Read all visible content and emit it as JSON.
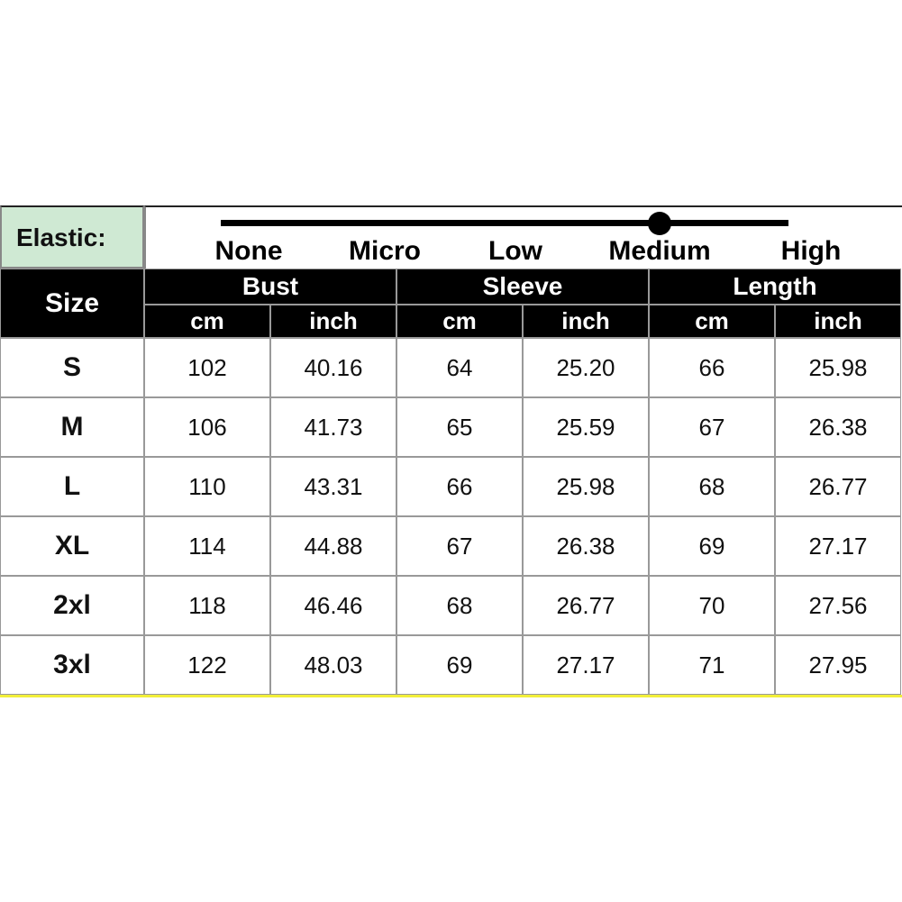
{
  "elastic": {
    "label": "Elastic:",
    "levels": [
      "None",
      "Micro",
      "Low",
      "Medium",
      "High"
    ],
    "selected": "Medium"
  },
  "header": {
    "size": "Size",
    "groups": [
      "Bust",
      "Sleeve",
      "Length"
    ],
    "units": [
      "cm",
      "inch",
      "cm",
      "inch",
      "cm",
      "inch"
    ]
  },
  "rows": [
    {
      "size": "S",
      "values": [
        "102",
        "40.16",
        "64",
        "25.20",
        "66",
        "25.98"
      ]
    },
    {
      "size": "M",
      "values": [
        "106",
        "41.73",
        "65",
        "25.59",
        "67",
        "26.38"
      ]
    },
    {
      "size": "L",
      "values": [
        "110",
        "43.31",
        "66",
        "25.98",
        "68",
        "26.77"
      ]
    },
    {
      "size": "XL",
      "values": [
        "114",
        "44.88",
        "67",
        "26.38",
        "69",
        "27.17"
      ]
    },
    {
      "size": "2xl",
      "values": [
        "118",
        "46.46",
        "68",
        "26.77",
        "70",
        "27.56"
      ]
    },
    {
      "size": "3xl",
      "values": [
        "122",
        "48.03",
        "69",
        "27.17",
        "71",
        "27.95"
      ]
    }
  ],
  "colors": {
    "elastic_bg": "#cfe9d3",
    "header_bg": "#000000",
    "bottom_line": "#f2ef3a"
  }
}
